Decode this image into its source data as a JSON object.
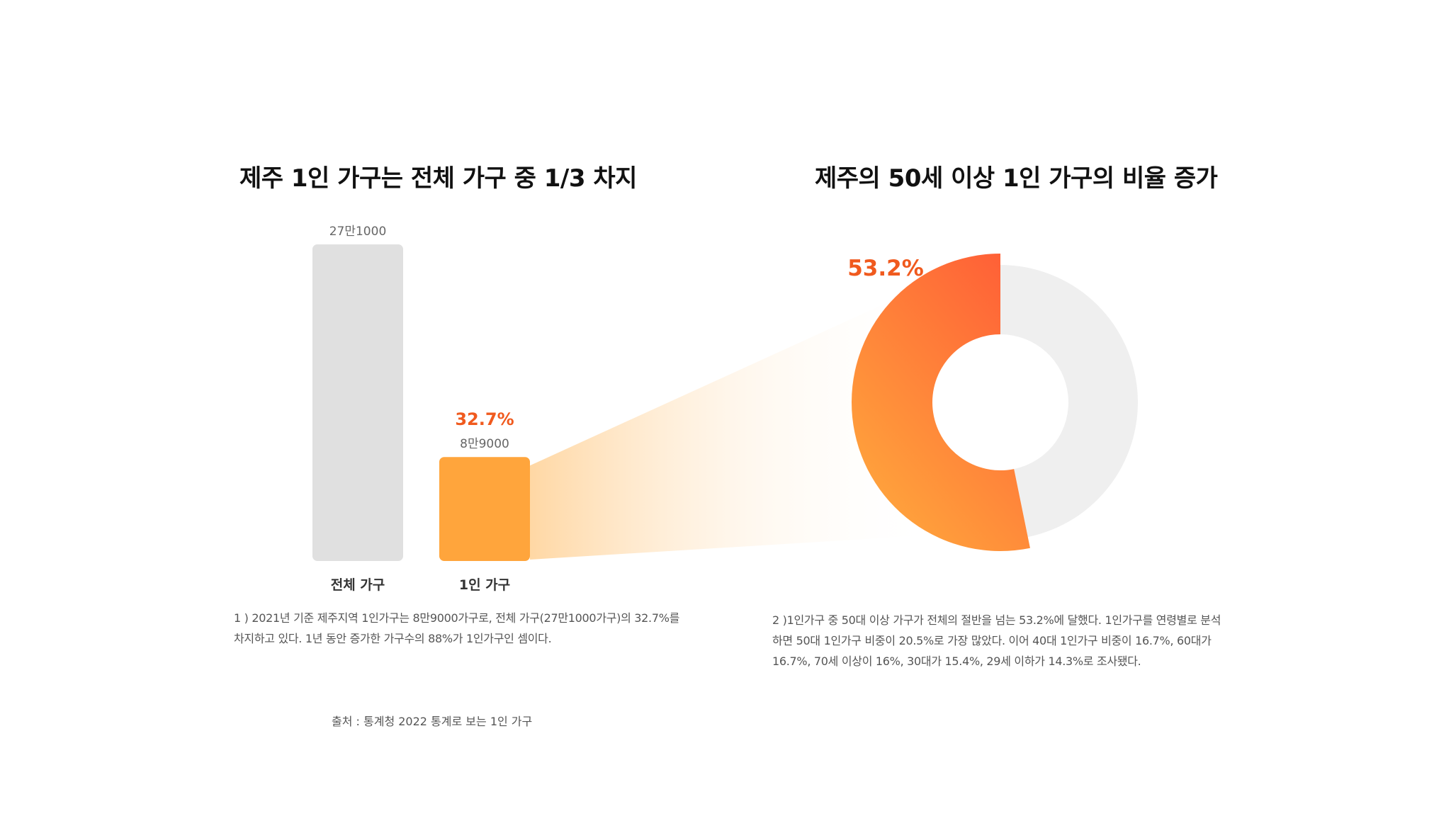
{
  "left_panel": {
    "title": "제주 1인 가구는 전체 가구 중 1/3 차지",
    "note_lines": [
      "1 ) 2021년 기준 제주지역 1인가구는 8만9000가구로, 전체 가구(27만1000가구)의 32.7%를",
      "차지하고 있다. 1년 동안 증가한 가구수의 88%가 1인가구인 셈이다."
    ]
  },
  "right_panel": {
    "title": "제주의 50세 이상 1인 가구의 비율 증가",
    "note_lines": [
      "2 )1인가구 중 50대 이상 가구가 전체의 절반을 넘는 53.2%에 달했다. 1인가구를 연령별로 분석",
      "하면 50대 1인가구 비중이 20.5%로 가장 많았다. 이어 40대 1인가구 비중이 16.7%, 60대가",
      "16.7%, 70세 이상이 16%, 30대가 15.4%, 29세 이하가 14.3%로 조사됐다."
    ]
  },
  "source": "출처 : 통계청 2022 통계로 보는 1인 가구",
  "colors": {
    "bar_total": "#e0e0e0",
    "bar_single": "#ffa53c",
    "highlight_text": "#f05a1e",
    "donut_rest": "#efefef",
    "donut_grad_start": "#ff5a36",
    "donut_grad_end": "#ffa53c"
  },
  "chart_data": [
    {
      "type": "bar",
      "title": "제주 1인 가구는 전체 가구 중 1/3 차지",
      "categories": [
        "전체 가구",
        "1인 가구"
      ],
      "values": [
        271000,
        89000
      ],
      "value_labels": [
        "27만1000",
        "8만9000"
      ],
      "highlight_label": "32.7%",
      "highlight_index": 1,
      "ylim": [
        0,
        271000
      ]
    },
    {
      "type": "pie",
      "title": "제주의 50세 이상 1인 가구의 비율 증가",
      "slices": [
        {
          "value": 53.2,
          "highlighted": true
        },
        {
          "value": 46.8,
          "highlighted": false
        }
      ],
      "highlight_label": "53.2%"
    }
  ]
}
